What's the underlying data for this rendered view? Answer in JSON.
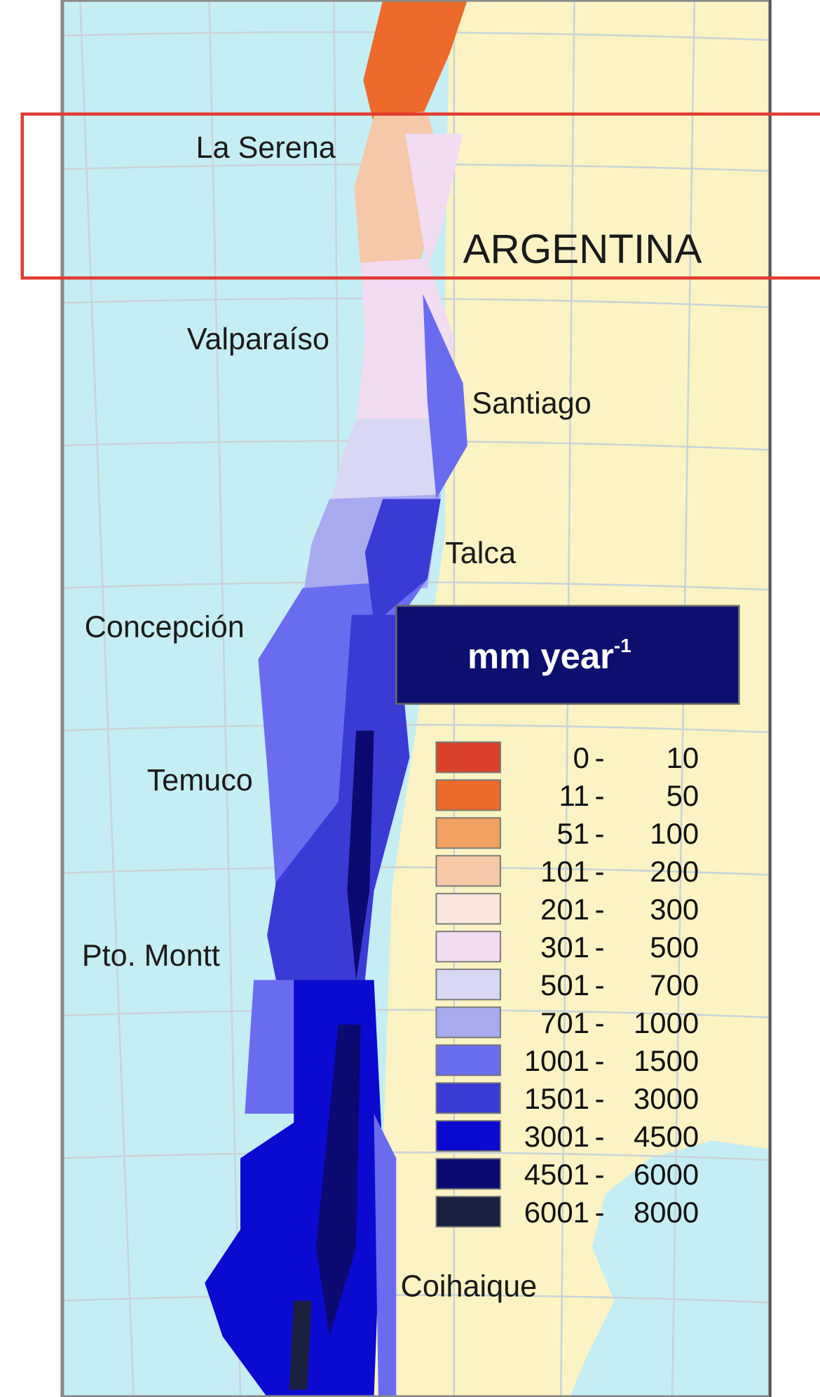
{
  "map": {
    "cities": [
      {
        "label": "La Serena"
      },
      {
        "label": "Valparaíso"
      },
      {
        "label": "Santiago"
      },
      {
        "label": "Talca"
      },
      {
        "label": "Concepción"
      },
      {
        "label": "Temuco"
      },
      {
        "label": "Pto. Montt"
      },
      {
        "label": "Coihaique"
      }
    ],
    "country": "ARGENTINA",
    "legend": {
      "unit": "mm year",
      "unit_exponent": "-1",
      "separator": "-",
      "items": [
        {
          "low": 0,
          "high": 10,
          "color": "#d9412a"
        },
        {
          "low": 11,
          "high": 50,
          "color": "#ec6a2a"
        },
        {
          "low": 51,
          "high": 100,
          "color": "#f0a060"
        },
        {
          "low": 101,
          "high": 200,
          "color": "#f5c8a8"
        },
        {
          "low": 201,
          "high": 300,
          "color": "#f8e6dc"
        },
        {
          "low": 301,
          "high": 500,
          "color": "#f2dcf2"
        },
        {
          "low": 501,
          "high": 700,
          "color": "#d8d8f4"
        },
        {
          "low": 701,
          "high": 1000,
          "color": "#a8aaf0"
        },
        {
          "low": 1001,
          "high": 1500,
          "color": "#6a6cf0"
        },
        {
          "low": 1501,
          "high": 3000,
          "color": "#3a3ad4"
        },
        {
          "low": 3001,
          "high": 4500,
          "color": "#0a0ad0"
        },
        {
          "low": 4501,
          "high": 6000,
          "color": "#0a0a70"
        },
        {
          "low": 6001,
          "high": 8000,
          "color": "#1a2040"
        }
      ]
    }
  }
}
